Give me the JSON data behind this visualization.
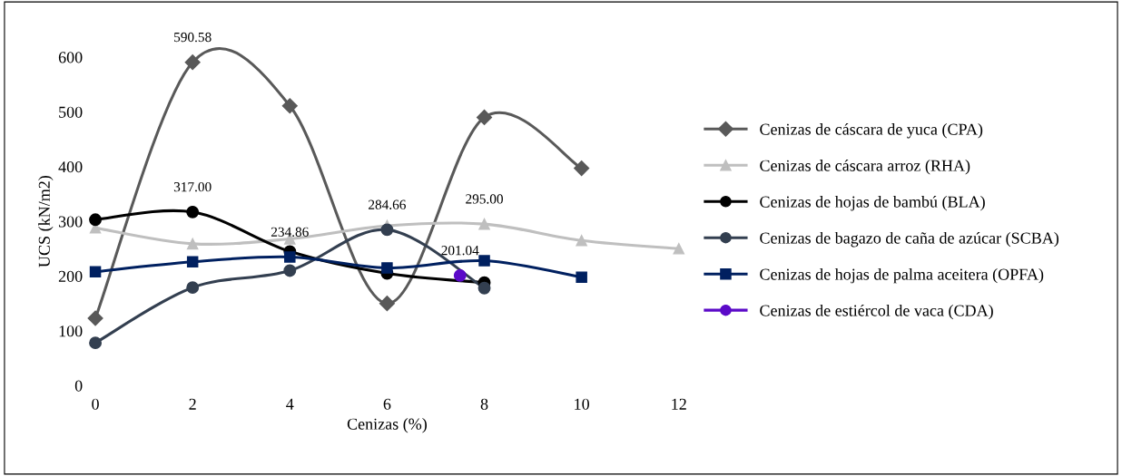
{
  "chart_data": {
    "type": "line",
    "xlabel": "Cenizas (%)",
    "ylabel": "UCS (kN/m2)",
    "xlim": [
      0,
      12
    ],
    "xticks": [
      0,
      2,
      4,
      6,
      8,
      10,
      12
    ],
    "ylim": [
      0,
      600
    ],
    "yticks": [
      0,
      100,
      200,
      300,
      400,
      500,
      600
    ],
    "grid": false,
    "legend": "right",
    "line_style": "solid",
    "series": [
      {
        "name": "Cenizas de cáscara de yuca (CPA)",
        "color": "#595959",
        "marker": "diamond",
        "x": [
          0,
          2,
          4,
          6,
          8,
          10
        ],
        "values": [
          123,
          590.58,
          511,
          150,
          490,
          397
        ],
        "value_labels": [
          null,
          "590.58",
          null,
          null,
          null,
          null
        ]
      },
      {
        "name": "Cenizas de cáscara arroz (RHA)",
        "color": "#bfbfbf",
        "marker": "triangle",
        "x": [
          0,
          2,
          4,
          6,
          8,
          10,
          12
        ],
        "values": [
          288,
          259,
          268,
          292,
          295.0,
          265,
          250
        ],
        "value_labels": [
          null,
          null,
          null,
          null,
          "295.00",
          null,
          null
        ]
      },
      {
        "name": "Cenizas de hojas de bambú (BLA)",
        "color": "#000000",
        "marker": "circle",
        "x": [
          0,
          2,
          4,
          6,
          8
        ],
        "values": [
          303,
          317.0,
          245,
          205,
          188
        ],
        "value_labels": [
          null,
          "317.00",
          null,
          null,
          null
        ]
      },
      {
        "name": "Cenizas de bagazo de caña de azúcar (SCBA)",
        "color": "#333f50",
        "marker": "circle",
        "x": [
          0,
          2,
          4,
          6,
          8
        ],
        "values": [
          78,
          179,
          210,
          284.66,
          178
        ],
        "value_labels": [
          null,
          null,
          null,
          "284.66",
          null
        ]
      },
      {
        "name": "Cenizas de hojas de palma aceitera (OPFA)",
        "color": "#002060",
        "marker": "square",
        "x": [
          0,
          2,
          4,
          6,
          8,
          10
        ],
        "values": [
          208,
          226,
          234.86,
          215,
          228,
          198
        ],
        "value_labels": [
          null,
          null,
          "234.86",
          null,
          null,
          null
        ]
      },
      {
        "name": "Cenizas de estiércol de vaca (CDA)",
        "color": "#5b0ac8",
        "marker": "circle",
        "x": [
          7.5
        ],
        "values": [
          201.04
        ],
        "value_labels": [
          "201.04"
        ]
      }
    ]
  }
}
